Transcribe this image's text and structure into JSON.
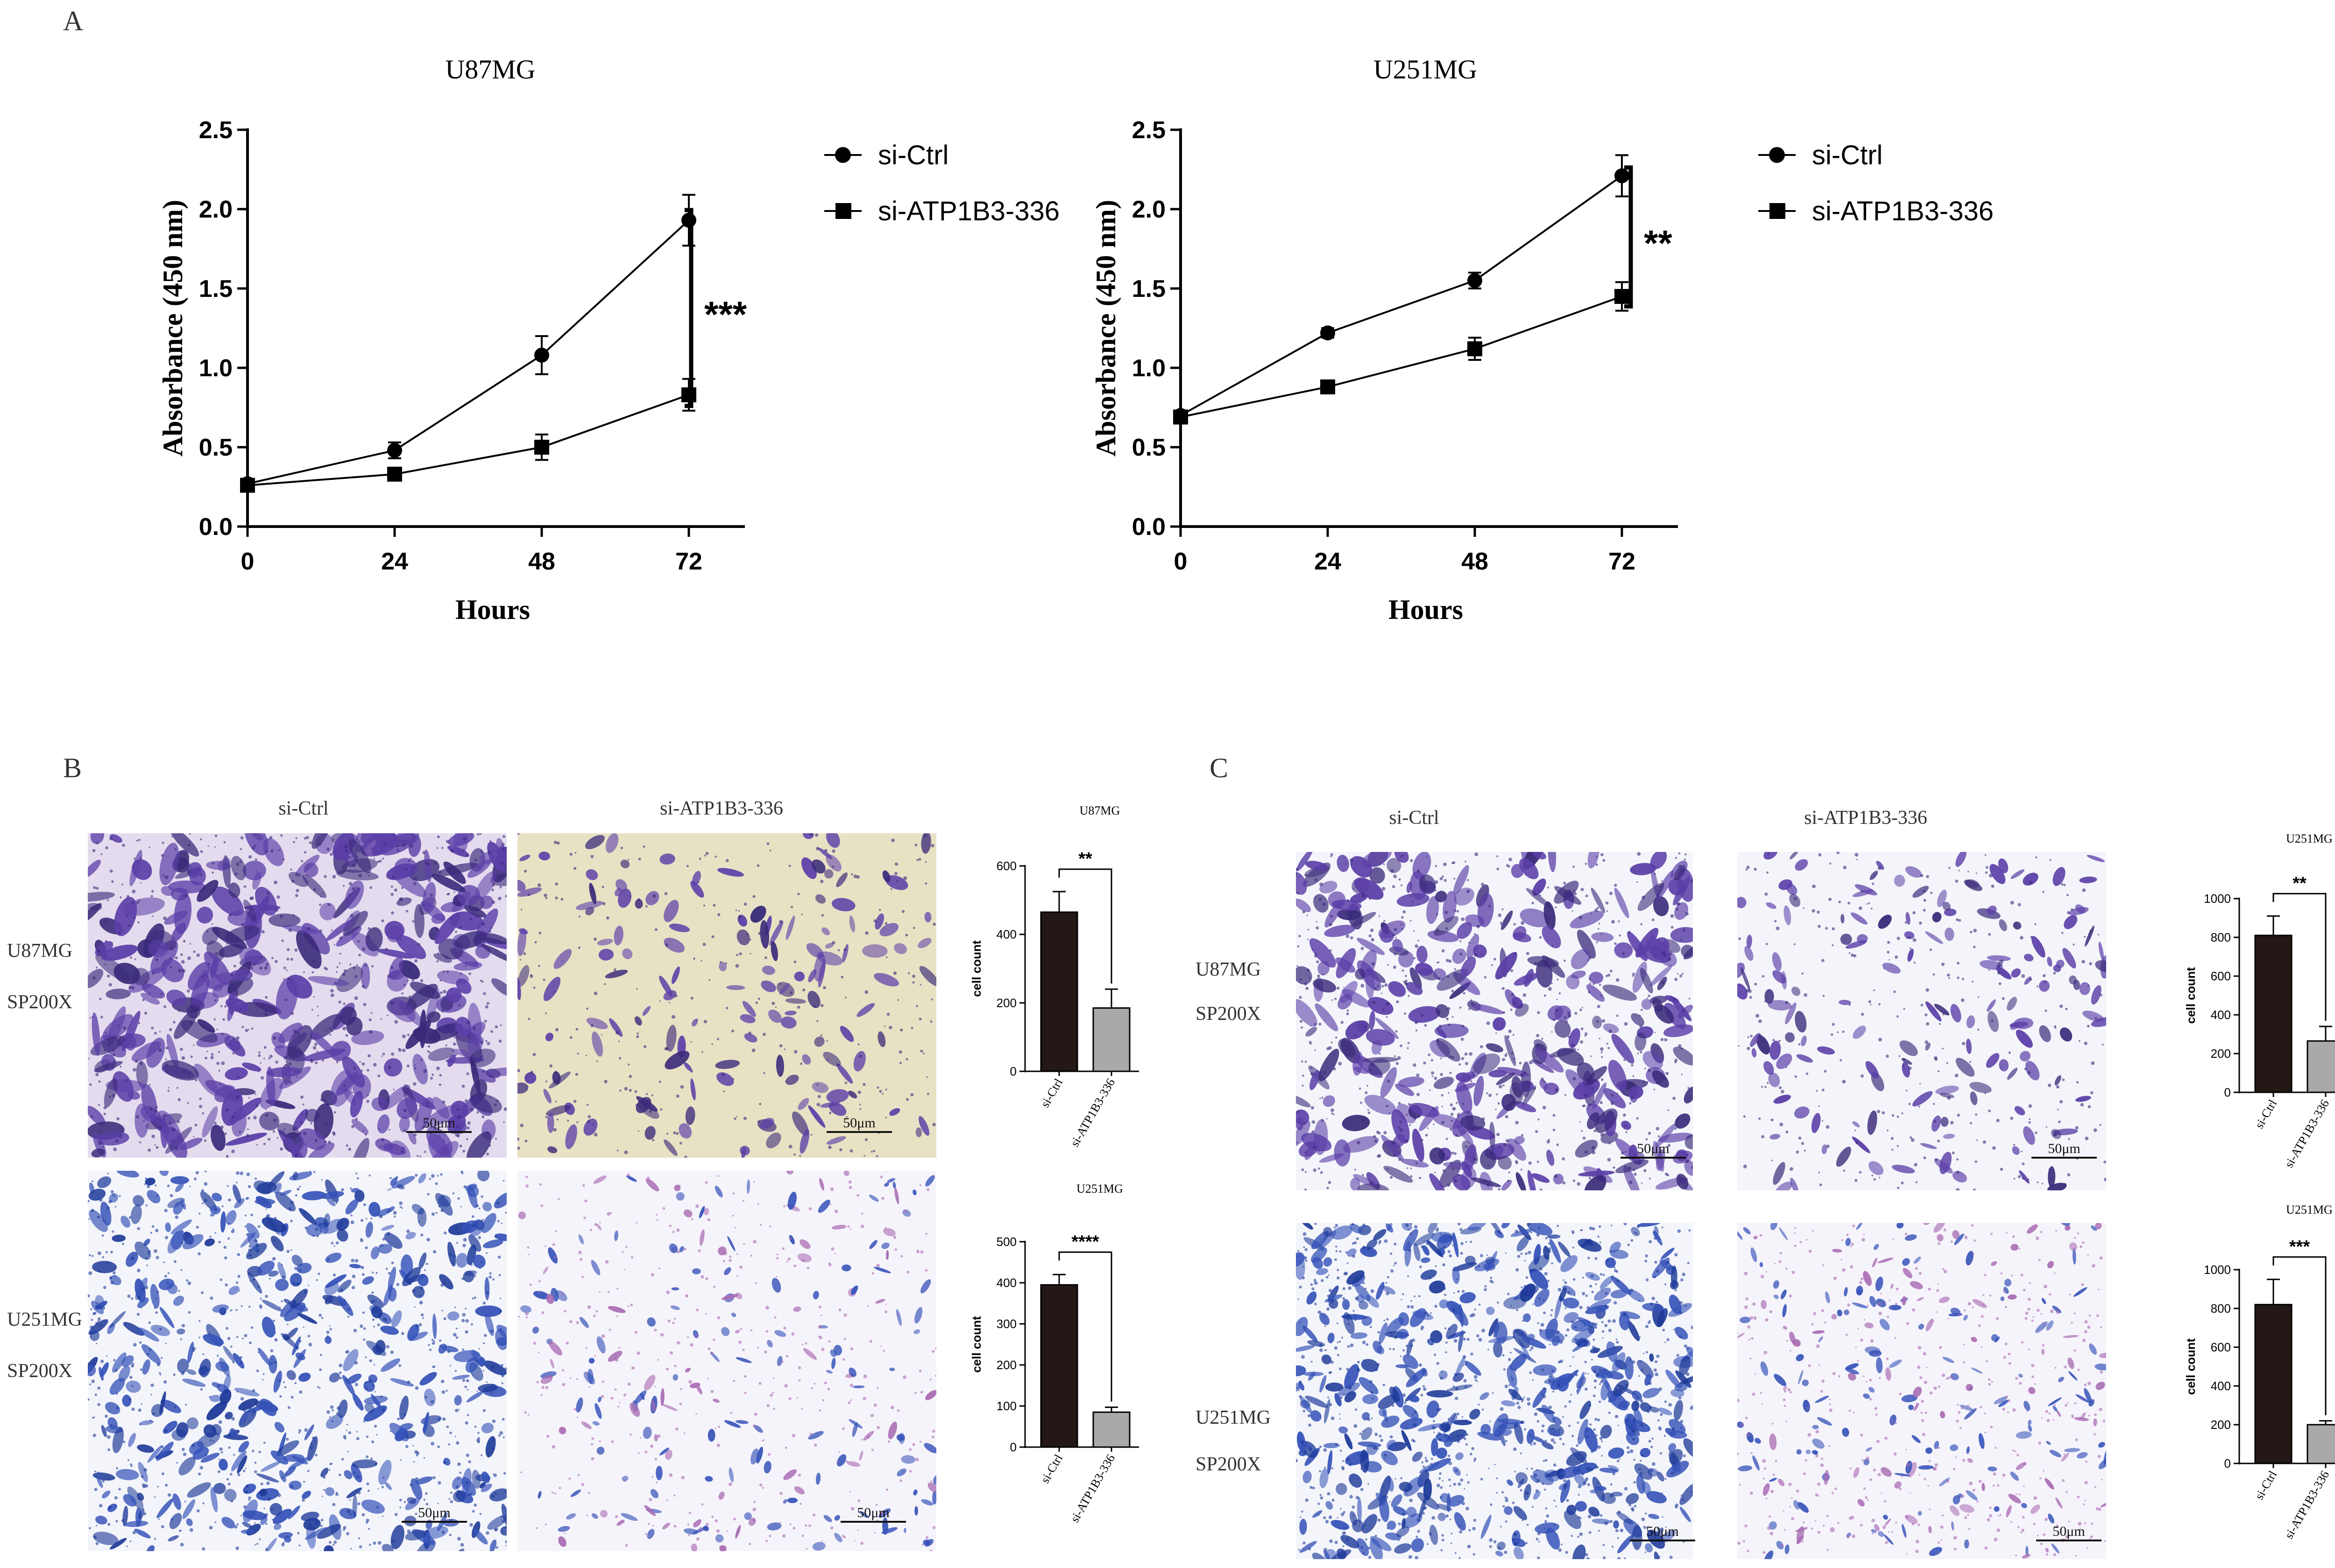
{
  "panels": {
    "A": "A",
    "B": "B",
    "C": "C"
  },
  "chart_data": [
    {
      "id": "A1",
      "type": "line",
      "title": "U87MG",
      "xlabel": "Hours",
      "ylabel": "Absorbance (450 nm)",
      "x": [
        0,
        24,
        48,
        72
      ],
      "xticks": [
        "0",
        "24",
        "48",
        "72"
      ],
      "yticks": [
        "0.0",
        "0.5",
        "1.0",
        "1.5",
        "2.0",
        "2.5"
      ],
      "ylim": [
        0,
        2.5
      ],
      "series": [
        {
          "name": "si-Ctrl",
          "marker": "circle",
          "values": [
            0.27,
            0.48,
            1.08,
            1.93
          ],
          "errors": [
            0.03,
            0.05,
            0.12,
            0.16
          ]
        },
        {
          "name": "si-ATP1B3-336",
          "marker": "square",
          "values": [
            0.26,
            0.33,
            0.5,
            0.83
          ],
          "errors": [
            0.03,
            0.04,
            0.08,
            0.1
          ]
        }
      ],
      "significance": "***",
      "colors": {
        "line": "#000000"
      }
    },
    {
      "id": "A2",
      "type": "line",
      "title": "U251MG",
      "xlabel": "Hours",
      "ylabel": "Absorbance (450 nm)",
      "x": [
        0,
        24,
        48,
        72
      ],
      "xticks": [
        "0",
        "24",
        "48",
        "72"
      ],
      "yticks": [
        "0.0",
        "0.5",
        "1.0",
        "1.5",
        "2.0",
        "2.5"
      ],
      "ylim": [
        0,
        2.5
      ],
      "series": [
        {
          "name": "si-Ctrl",
          "marker": "circle",
          "values": [
            0.7,
            1.22,
            1.55,
            2.21
          ],
          "errors": [
            0.03,
            0.03,
            0.05,
            0.13
          ]
        },
        {
          "name": "si-ATP1B3-336",
          "marker": "square",
          "values": [
            0.69,
            0.88,
            1.12,
            1.45
          ],
          "errors": [
            0.03,
            0.04,
            0.07,
            0.09
          ]
        }
      ],
      "significance": "**",
      "colors": {
        "line": "#000000"
      }
    },
    {
      "id": "B1",
      "type": "bar",
      "title": "U87MG",
      "ylabel": "cell count",
      "categories": [
        "si-Ctrl",
        "si-ATP1B3-336"
      ],
      "values": [
        465,
        185
      ],
      "errors": [
        60,
        55
      ],
      "yticks": [
        "0",
        "200",
        "400",
        "600"
      ],
      "ylim": [
        0,
        600
      ],
      "significance": "**",
      "colors": {
        "bars": [
          "#231815",
          "#a9a9a9"
        ]
      }
    },
    {
      "id": "B2",
      "type": "bar",
      "title": "U251MG",
      "ylabel": "cell count",
      "categories": [
        "si-Ctrl",
        "si-ATP1B3-336"
      ],
      "values": [
        395,
        85
      ],
      "errors": [
        25,
        12
      ],
      "yticks": [
        "0",
        "100",
        "200",
        "300",
        "400",
        "500"
      ],
      "ylim": [
        0,
        500
      ],
      "significance": "****",
      "colors": {
        "bars": [
          "#231815",
          "#a9a9a9"
        ]
      }
    },
    {
      "id": "C1",
      "type": "bar",
      "title": "U251MG",
      "ylabel": "cell count",
      "categories": [
        "si-Ctrl",
        "si-ATP1B3-336"
      ],
      "values": [
        810,
        265
      ],
      "errors": [
        100,
        75
      ],
      "yticks": [
        "0",
        "200",
        "400",
        "600",
        "800",
        "1000"
      ],
      "ylim": [
        0,
        1000
      ],
      "significance": "**",
      "colors": {
        "bars": [
          "#231815",
          "#a9a9a9"
        ]
      }
    },
    {
      "id": "C2",
      "type": "bar",
      "title": "U251MG",
      "ylabel": "cell count",
      "categories": [
        "si-Ctrl",
        "si-ATP1B3-336"
      ],
      "values": [
        820,
        200
      ],
      "errors": [
        130,
        20
      ],
      "yticks": [
        "0",
        "200",
        "400",
        "600",
        "800",
        "1000"
      ],
      "ylim": [
        0,
        1000
      ],
      "significance": "***",
      "colors": {
        "bars": [
          "#231815",
          "#a9a9a9"
        ]
      }
    }
  ],
  "micrographs": {
    "B": {
      "columns": [
        "si-Ctrl",
        "si-ATP1B3-336"
      ],
      "rows": [
        {
          "line1": "U87MG",
          "line2": "SP200X"
        },
        {
          "line1": "U251MG",
          "line2": "SP200X"
        }
      ],
      "scale_bar": "50μm"
    },
    "C": {
      "columns": [
        "si-Ctrl",
        "si-ATP1B3-336"
      ],
      "rows": [
        {
          "line1": "U87MG",
          "line2": "SP200X"
        },
        {
          "line1": "U251MG",
          "line2": "SP200X"
        }
      ],
      "scale_bar": "50μm"
    }
  },
  "colors": {
    "stain_dense": "#5b3fa8",
    "stain_dark": "#3a2a7a",
    "stain_blue": "#3552b8",
    "stain_blue_dark": "#1e3a99",
    "bg_yellow": "#e8e2c4",
    "bg_lavender": "#e4dcee",
    "bg_white": "#f4f5fa",
    "bg_light": "#f6f4fb",
    "stain_pink": "#a86ab2"
  }
}
